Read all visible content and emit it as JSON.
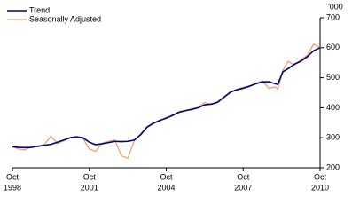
{
  "chart_data": {
    "type": "line",
    "unit_label": "'000",
    "x": [
      1998.75,
      1999,
      1999.25,
      1999.5,
      1999.75,
      2000,
      2000.25,
      2000.5,
      2000.75,
      2001,
      2001.25,
      2001.5,
      2001.75,
      2002,
      2002.25,
      2002.5,
      2002.75,
      2003,
      2003.25,
      2003.5,
      2003.75,
      2004,
      2004.25,
      2004.5,
      2004.75,
      2005,
      2005.25,
      2005.5,
      2005.75,
      2006,
      2006.25,
      2006.5,
      2006.75,
      2007,
      2007.25,
      2007.5,
      2007.75,
      2008,
      2008.25,
      2008.5,
      2008.75,
      2009,
      2009.1,
      2009.3,
      2009.5,
      2009.75,
      2010,
      2010.25,
      2010.5,
      2010.75
    ],
    "series": [
      {
        "name": "Trend",
        "color": "#000080",
        "values": [
          270,
          268,
          267,
          268,
          272,
          275,
          278,
          285,
          292,
          300,
          303,
          300,
          285,
          277,
          280,
          284,
          288,
          287,
          288,
          292,
          310,
          335,
          348,
          358,
          365,
          375,
          385,
          390,
          395,
          400,
          410,
          412,
          418,
          435,
          452,
          460,
          465,
          472,
          480,
          486,
          487,
          480,
          478,
          520,
          530,
          545,
          555,
          570,
          590,
          600
        ]
      },
      {
        "name": "Seasonally Adjusted",
        "color": "#f0a070",
        "values": [
          272,
          262,
          260,
          270,
          270,
          278,
          305,
          280,
          290,
          300,
          302,
          298,
          262,
          255,
          282,
          288,
          292,
          240,
          232,
          290,
          312,
          337,
          350,
          355,
          368,
          372,
          388,
          392,
          392,
          400,
          418,
          410,
          420,
          437,
          450,
          462,
          468,
          470,
          482,
          490,
          465,
          470,
          462,
          525,
          555,
          542,
          560,
          575,
          612,
          600
        ]
      }
    ],
    "xlim": [
      1998.75,
      2010.75
    ],
    "xticks": [
      {
        "value": 1998.75,
        "label": [
          "Oct",
          "1998"
        ]
      },
      {
        "value": 2001.75,
        "label": [
          "Oct",
          "2001"
        ]
      },
      {
        "value": 2004.75,
        "label": [
          "Oct",
          "2004"
        ]
      },
      {
        "value": 2007.75,
        "label": [
          "Oct",
          "2007"
        ]
      },
      {
        "value": 2010.75,
        "label": [
          "Oct",
          "2010"
        ]
      }
    ],
    "ylim": [
      200,
      700
    ],
    "yticks": [
      200,
      300,
      400,
      500,
      600,
      700
    ],
    "legend": "top-left",
    "grid": false
  }
}
